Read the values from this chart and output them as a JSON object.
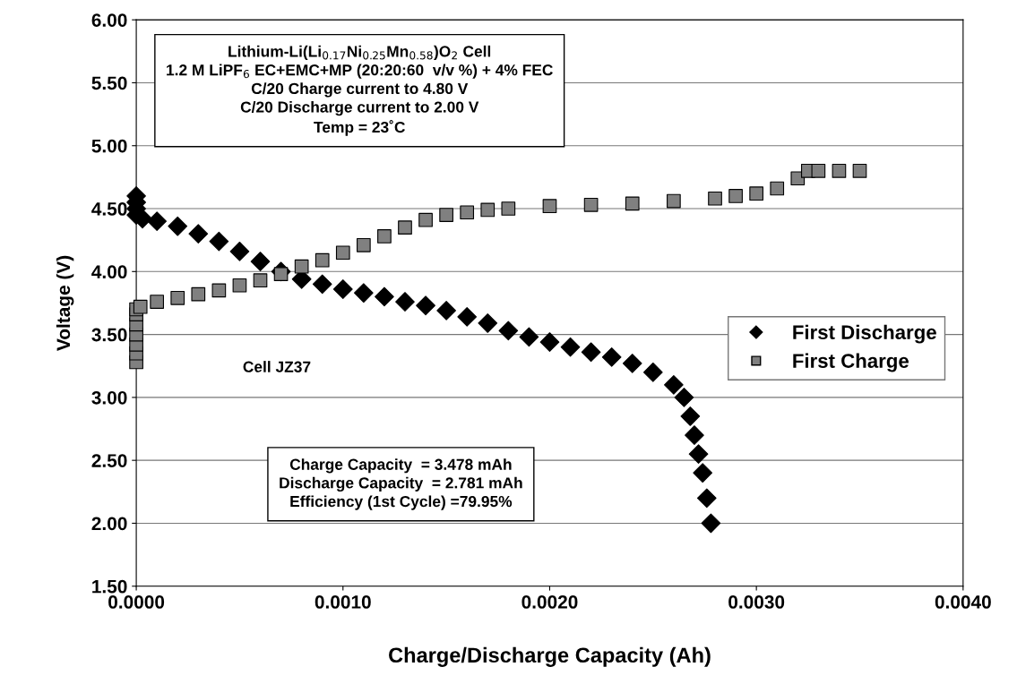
{
  "chart_data": {
    "type": "scatter",
    "xlabel": "Charge/Discharge Capacity (Ah)",
    "ylabel": "Voltage (V)",
    "xlim": [
      0,
      0.004
    ],
    "ylim": [
      1.5,
      6.0
    ],
    "xticks": [
      {
        "value": 0,
        "label": "0.0000"
      },
      {
        "value": 0.001,
        "label": "0.0010"
      },
      {
        "value": 0.002,
        "label": "0.0020"
      },
      {
        "value": 0.003,
        "label": "0.0030"
      },
      {
        "value": 0.004,
        "label": "0.0040"
      }
    ],
    "yticks": [
      {
        "value": 1.5,
        "label": "1.50"
      },
      {
        "value": 2.0,
        "label": "2.00"
      },
      {
        "value": 2.5,
        "label": "2.50"
      },
      {
        "value": 3.0,
        "label": "3.00"
      },
      {
        "value": 3.5,
        "label": "3.50"
      },
      {
        "value": 4.0,
        "label": "4.00"
      },
      {
        "value": 4.5,
        "label": "4.50"
      },
      {
        "value": 5.0,
        "label": "5.00"
      },
      {
        "value": 5.5,
        "label": "5.50"
      },
      {
        "value": 6.0,
        "label": "6.00"
      }
    ],
    "grid": "y",
    "legend": "right",
    "series": [
      {
        "name": "First Discharge",
        "color": "#000000",
        "marker": "diamond",
        "x": [
          0,
          0,
          0,
          0,
          3e-05,
          0.0001,
          0.0002,
          0.0003,
          0.0004,
          0.0005,
          0.0006,
          0.0007,
          0.0008,
          0.0009,
          0.001,
          0.0011,
          0.0012,
          0.0013,
          0.0014,
          0.0015,
          0.0016,
          0.0017,
          0.0018,
          0.0019,
          0.002,
          0.0021,
          0.0022,
          0.0023,
          0.0024,
          0.0025,
          0.0026,
          0.00265,
          0.00268,
          0.0027,
          0.00272,
          0.00274,
          0.00276,
          0.00278
        ],
        "values": [
          4.6,
          4.55,
          4.5,
          4.45,
          4.42,
          4.4,
          4.36,
          4.3,
          4.24,
          4.16,
          4.08,
          4.0,
          3.94,
          3.9,
          3.86,
          3.83,
          3.8,
          3.76,
          3.73,
          3.69,
          3.64,
          3.59,
          3.53,
          3.48,
          3.44,
          3.4,
          3.36,
          3.32,
          3.27,
          3.2,
          3.1,
          3.0,
          2.85,
          2.7,
          2.55,
          2.4,
          2.2,
          2.0
        ]
      },
      {
        "name": "First Charge",
        "color": "#808080",
        "marker": "square",
        "x": [
          0,
          0,
          0,
          0,
          0,
          0,
          0,
          2e-05,
          0.0001,
          0.0002,
          0.0003,
          0.0004,
          0.0005,
          0.0006,
          0.0007,
          0.0008,
          0.0009,
          0.001,
          0.0011,
          0.0012,
          0.0013,
          0.0014,
          0.0015,
          0.0016,
          0.0017,
          0.0018,
          0.002,
          0.0022,
          0.0024,
          0.0026,
          0.0028,
          0.0029,
          0.003,
          0.0031,
          0.0032,
          0.00325,
          0.0033,
          0.0034,
          0.0035
        ],
        "values": [
          3.28,
          3.35,
          3.42,
          3.5,
          3.58,
          3.66,
          3.7,
          3.72,
          3.76,
          3.79,
          3.82,
          3.85,
          3.89,
          3.93,
          3.98,
          4.04,
          4.09,
          4.15,
          4.21,
          4.28,
          4.35,
          4.41,
          4.45,
          4.47,
          4.49,
          4.5,
          4.52,
          4.53,
          4.54,
          4.56,
          4.58,
          4.6,
          4.62,
          4.66,
          4.74,
          4.8,
          4.8,
          4.8,
          4.8
        ]
      }
    ],
    "annotations": [
      "Lithium-Li(Li$_{0.17}$Ni$_{0.25}$Mn$_{0.58}$)O$_{2}$ Cell\n1.2 M LiPF$_{6}$ EC+EMC+MP (20:20:60  v/v %) + 4% FEC\nC/20 Charge current to 4.80 V\nC/20 Discharge current to 2.00 V\nTemp = 23˚C",
      "Cell JZ37",
      "Charge Capacity  = 3.478 mAh\nDischarge Capacity  = 2.781 mAh\nEfficiency (1st Cycle) =79.95%"
    ]
  }
}
